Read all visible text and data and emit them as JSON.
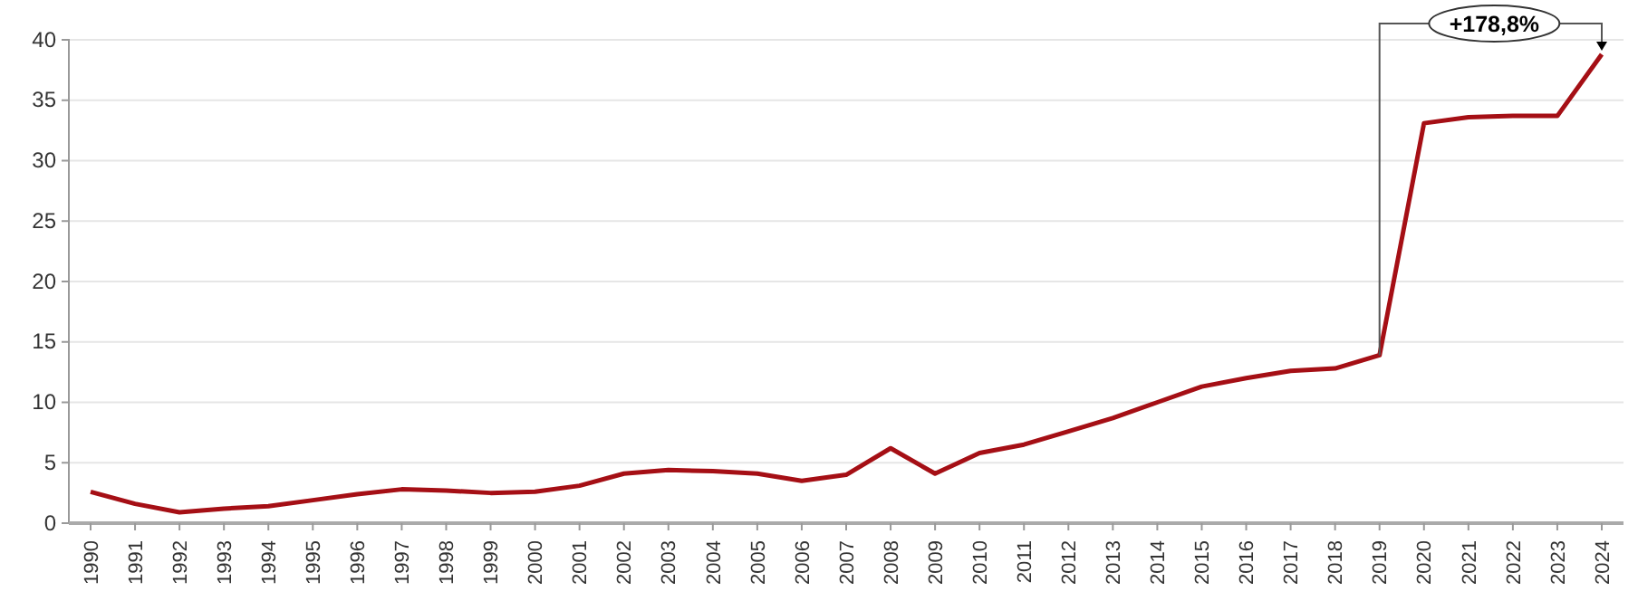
{
  "chart_data": {
    "type": "line",
    "categories": [
      "1990",
      "1991",
      "1992",
      "1993",
      "1994",
      "1995",
      "1996",
      "1997",
      "1998",
      "1999",
      "2000",
      "2001",
      "2002",
      "2003",
      "2004",
      "2005",
      "2006",
      "2007",
      "2008",
      "2009",
      "2010",
      "2011",
      "2012",
      "2013",
      "2014",
      "2015",
      "2016",
      "2017",
      "2018",
      "2019",
      "2020",
      "2021",
      "2022",
      "2023",
      "2024"
    ],
    "series": [
      {
        "color": "#a50f15",
        "values": [
          2.6,
          1.6,
          0.9,
          1.2,
          1.4,
          1.9,
          2.4,
          2.8,
          2.7,
          2.5,
          2.6,
          3.1,
          4.1,
          4.4,
          4.3,
          4.1,
          3.5,
          4.0,
          6.2,
          4.1,
          5.8,
          6.5,
          7.6,
          8.7,
          10.0,
          11.3,
          12.0,
          12.6,
          12.8,
          13.9,
          33.1,
          33.6,
          33.7,
          33.7,
          38.8
        ]
      }
    ],
    "ylim": [
      0,
      40
    ],
    "yticks": [
      0,
      5,
      10,
      15,
      20,
      25,
      30,
      35,
      40
    ],
    "grid": "y",
    "marker": "none",
    "line_style": "solid",
    "annotations": [
      "+178,8%"
    ]
  }
}
